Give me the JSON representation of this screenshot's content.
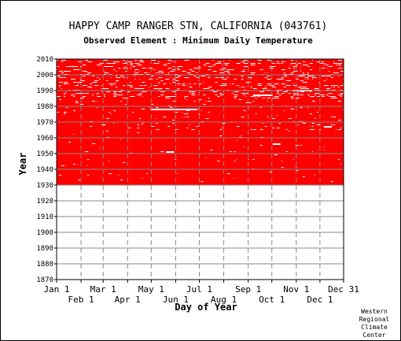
{
  "chart_data": {
    "type": "heatmap",
    "title": "HAPPY CAMP RANGER STN, CALIFORNIA   (043761)",
    "subtitle": "Observed Element : Minimum Daily Temperature",
    "xlabel": "Day of Year",
    "ylabel": "Year",
    "x_ticks_upper": [
      {
        "label": "Jan 1",
        "day": 1
      },
      {
        "label": "Mar 1",
        "day": 60
      },
      {
        "label": "May 1",
        "day": 121
      },
      {
        "label": "Jul 1",
        "day": 182
      },
      {
        "label": "Sep 1",
        "day": 244
      },
      {
        "label": "Nov 1",
        "day": 305
      },
      {
        "label": "Dec 31",
        "day": 365
      }
    ],
    "x_ticks_lower": [
      {
        "label": "Feb 1",
        "day": 32
      },
      {
        "label": "Apr 1",
        "day": 91
      },
      {
        "label": "Jun 1",
        "day": 152
      },
      {
        "label": "Aug 1",
        "day": 213
      },
      {
        "label": "Oct 1",
        "day": 274
      },
      {
        "label": "Dec 1",
        "day": 335
      }
    ],
    "y_ticks": [
      1870,
      1880,
      1890,
      1900,
      1910,
      1920,
      1930,
      1940,
      1950,
      1960,
      1970,
      1980,
      1990,
      2000,
      2010
    ],
    "xlim": [
      1,
      365
    ],
    "ylim": [
      1870,
      2010
    ],
    "data_period": {
      "start_year": 1931,
      "end_year": 2010
    },
    "data_color": "#ff0000",
    "missing_color": "#ffffff",
    "grid": true,
    "grid_style": "dashed"
  },
  "credit": {
    "line1": "Western",
    "line2": "Regional",
    "line3": "Climate",
    "line4": "Center"
  }
}
